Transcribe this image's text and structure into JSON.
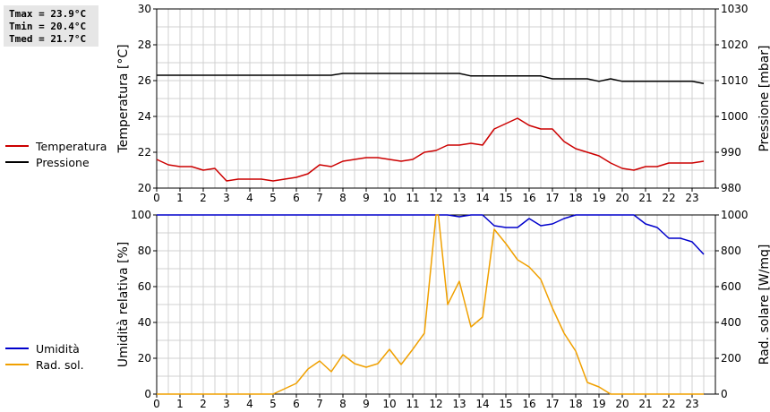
{
  "stats": {
    "tmax": "Tmax = 23.9°C",
    "tmin": "Tmin = 20.4°C",
    "tmed": "Tmed = 21.7°C"
  },
  "legend_top": [
    {
      "label": "Temperatura",
      "color": "#cc0000"
    },
    {
      "label": "Pressione",
      "color": "#000000"
    }
  ],
  "legend_bottom": [
    {
      "label": "Umidità",
      "color": "#0000cc"
    },
    {
      "label": "Rad. sol.",
      "color": "#f0a000"
    }
  ],
  "colors": {
    "temperature": "#cc0000",
    "pressure": "#000000",
    "humidity": "#0000cc",
    "radiation": "#f0a000",
    "grid": "#d0d0d0"
  },
  "chart_data": [
    {
      "type": "line",
      "xlim": [
        0,
        24
      ],
      "x_ticks": [
        "0",
        "1",
        "2",
        "3",
        "4",
        "5",
        "6",
        "7",
        "8",
        "9",
        "10",
        "11",
        "12",
        "13",
        "14",
        "15",
        "16",
        "17",
        "18",
        "19",
        "20",
        "21",
        "22",
        "23"
      ],
      "ylabel_left": "Temperatura [°C]",
      "ylim_left": [
        20,
        30
      ],
      "yticks_left": [
        "20",
        "22",
        "24",
        "26",
        "28",
        "30"
      ],
      "ylabel_right": "Pressione [mbar]",
      "ylim_right": [
        980,
        1030
      ],
      "yticks_right": [
        "980",
        "990",
        "1000",
        "1010",
        "1020",
        "1030"
      ],
      "grid": true,
      "series": [
        {
          "name": "Temperatura",
          "axis": "left",
          "x": [
            0,
            0.5,
            1,
            1.5,
            2,
            2.5,
            3,
            3.5,
            4,
            4.5,
            5,
            5.5,
            6,
            6.5,
            7,
            7.5,
            8,
            8.5,
            9,
            9.5,
            10,
            10.5,
            11,
            11.5,
            12,
            12.5,
            13,
            13.5,
            14,
            14.5,
            15,
            15.5,
            16,
            16.5,
            17,
            17.5,
            18,
            18.5,
            19,
            19.5,
            20,
            20.5,
            21,
            21.5,
            22,
            22.5,
            23,
            23.5
          ],
          "values": [
            21.6,
            21.3,
            21.2,
            21.2,
            21.0,
            21.1,
            20.4,
            20.5,
            20.5,
            20.5,
            20.4,
            20.5,
            20.6,
            20.8,
            21.3,
            21.2,
            21.5,
            21.6,
            21.7,
            21.7,
            21.6,
            21.5,
            21.6,
            22.0,
            22.1,
            22.4,
            22.4,
            22.5,
            22.4,
            23.3,
            23.6,
            23.9,
            23.5,
            23.3,
            23.3,
            22.6,
            22.2,
            22.0,
            21.8,
            21.4,
            21.1,
            21.0,
            21.2,
            21.2,
            21.4,
            21.4,
            21.4,
            21.5
          ]
        },
        {
          "name": "Pressione",
          "axis": "right",
          "x": [
            0,
            7.5,
            8,
            13,
            13.5,
            16.5,
            17,
            18,
            18.5,
            19,
            19.5,
            20,
            20.5,
            23,
            23.5
          ],
          "values": [
            1011.5,
            1011.5,
            1012.0,
            1012.0,
            1011.3,
            1011.3,
            1010.5,
            1010.5,
            1010.5,
            1009.8,
            1010.5,
            1009.8,
            1009.8,
            1009.8,
            1009.2
          ]
        }
      ]
    },
    {
      "type": "line",
      "xlim": [
        0,
        24
      ],
      "x_ticks": [
        "0",
        "1",
        "2",
        "3",
        "4",
        "5",
        "6",
        "7",
        "8",
        "9",
        "10",
        "11",
        "12",
        "13",
        "14",
        "15",
        "16",
        "17",
        "18",
        "19",
        "20",
        "21",
        "22",
        "23"
      ],
      "ylabel_left": "Umidità relativa [%]",
      "ylim_left": [
        0,
        100
      ],
      "yticks_left": [
        "0",
        "20",
        "40",
        "60",
        "80",
        "100"
      ],
      "ylabel_right": "Rad. solare [W/mq]",
      "ylim_right": [
        0,
        1000
      ],
      "yticks_right": [
        "0",
        "200",
        "400",
        "600",
        "800",
        "1000"
      ],
      "grid": true,
      "series": [
        {
          "name": "Umidità",
          "axis": "left",
          "x": [
            0,
            12,
            12.5,
            13,
            13.5,
            14,
            14.5,
            15,
            15.5,
            16,
            16.5,
            17,
            17.5,
            18,
            20.5,
            21,
            21.5,
            22,
            22.5,
            23,
            23.5
          ],
          "values": [
            100,
            100,
            100,
            99,
            100,
            100,
            94,
            93,
            93,
            98,
            94,
            95,
            98,
            100,
            100,
            95,
            93,
            87,
            87,
            85,
            78
          ]
        },
        {
          "name": "Rad. sol.",
          "axis": "right",
          "x": [
            0,
            5,
            5.5,
            6,
            6.5,
            7,
            7.5,
            8,
            8.5,
            9,
            9.5,
            10,
            10.5,
            11,
            11.5,
            12,
            12.1,
            12.5,
            13,
            13.5,
            14,
            14.5,
            15,
            15.5,
            16,
            16.5,
            17,
            17.5,
            18,
            18.5,
            19,
            19.5,
            20,
            23.5
          ],
          "values": [
            0,
            0,
            30,
            60,
            140,
            185,
            125,
            220,
            170,
            150,
            170,
            250,
            165,
            250,
            340,
            1000,
            1000,
            500,
            630,
            375,
            430,
            920,
            840,
            750,
            710,
            640,
            480,
            340,
            240,
            65,
            40,
            0,
            0,
            0
          ]
        }
      ]
    }
  ]
}
